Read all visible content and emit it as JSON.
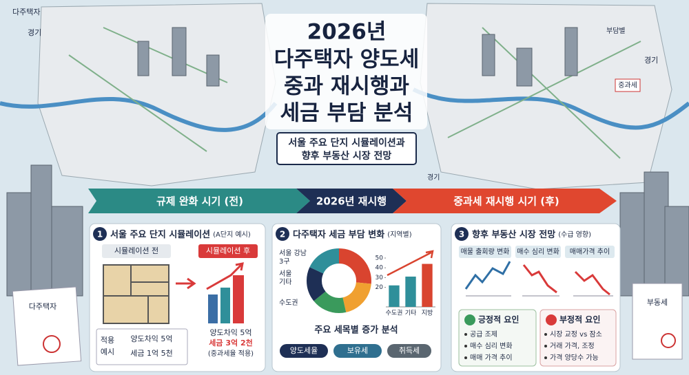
{
  "title": {
    "lines": [
      "2026년",
      "다주택자 양도세",
      "중과 재시행과",
      "세금 부담 분석"
    ]
  },
  "subtitle": {
    "lines": [
      "서울 주요 단지 시뮬레이션과",
      "향후 부동산 시장 전망"
    ]
  },
  "timeline": [
    "규제 완화 시기 (전)",
    "2026년 재시행",
    "중과세 재시행 시기 (후)"
  ],
  "map_labels": {
    "left_top": "다주택자",
    "left_region": "경기",
    "right_top": "부담별",
    "right_region": "경기",
    "right_tag": "중과세",
    "bottom_right": "경기",
    "doc_left": "다주택자",
    "doc_right": "부동세"
  },
  "panels": [
    {
      "number": "1",
      "title": "서울 주요 단지 시뮬레이션",
      "title_note": "(A단지 예시)",
      "before_tag": "시뮬레이션 전",
      "after_tag": "시뮬레이션 후",
      "example_label": [
        "적용",
        "예시"
      ],
      "before": [
        "양도차익 5억",
        "세금 1억 5천"
      ],
      "after": [
        "양도차익 5억",
        "세금 3억 2천",
        "(중과세율 적용)"
      ]
    },
    {
      "number": "2",
      "title": "다주택자 세금 부담 변화",
      "title_note": "(지역별)",
      "donut_labels": [
        [
          "서울 강남",
          "3구"
        ],
        [
          "서울",
          "기타"
        ],
        [
          "수도권"
        ]
      ],
      "bar_chart": {
        "categories": [
          "수도권",
          "기타",
          "지방"
        ],
        "values": [
          22,
          31,
          44
        ],
        "colors": [
          "#2f8f9a",
          "#2f8f9a",
          "#d9442f"
        ],
        "ylim": [
          0,
          50
        ],
        "yticks": [
          20,
          30,
          40,
          50
        ]
      },
      "breakdown_title": "주요 세목별 증가 분석",
      "breakdown": [
        "양도세율",
        "보유세",
        "취득세"
      ]
    },
    {
      "number": "3",
      "title": "향후 부동산 시장 전망",
      "title_note": "(수급 영향)",
      "indicators": [
        "매물 출회량 변화",
        "매수 심리 변화",
        "매매가격 추이"
      ],
      "positive": {
        "title": "긍정적 요인",
        "items": [
          "공급 조제",
          "매수 심리 변화",
          "매매 가격 추이"
        ]
      },
      "negative": {
        "title": "부정적 요인",
        "items": [
          "시장 교정 vs 잠소",
          "거래 가격, 조정",
          "가격 양당수 가능"
        ]
      }
    }
  ]
}
